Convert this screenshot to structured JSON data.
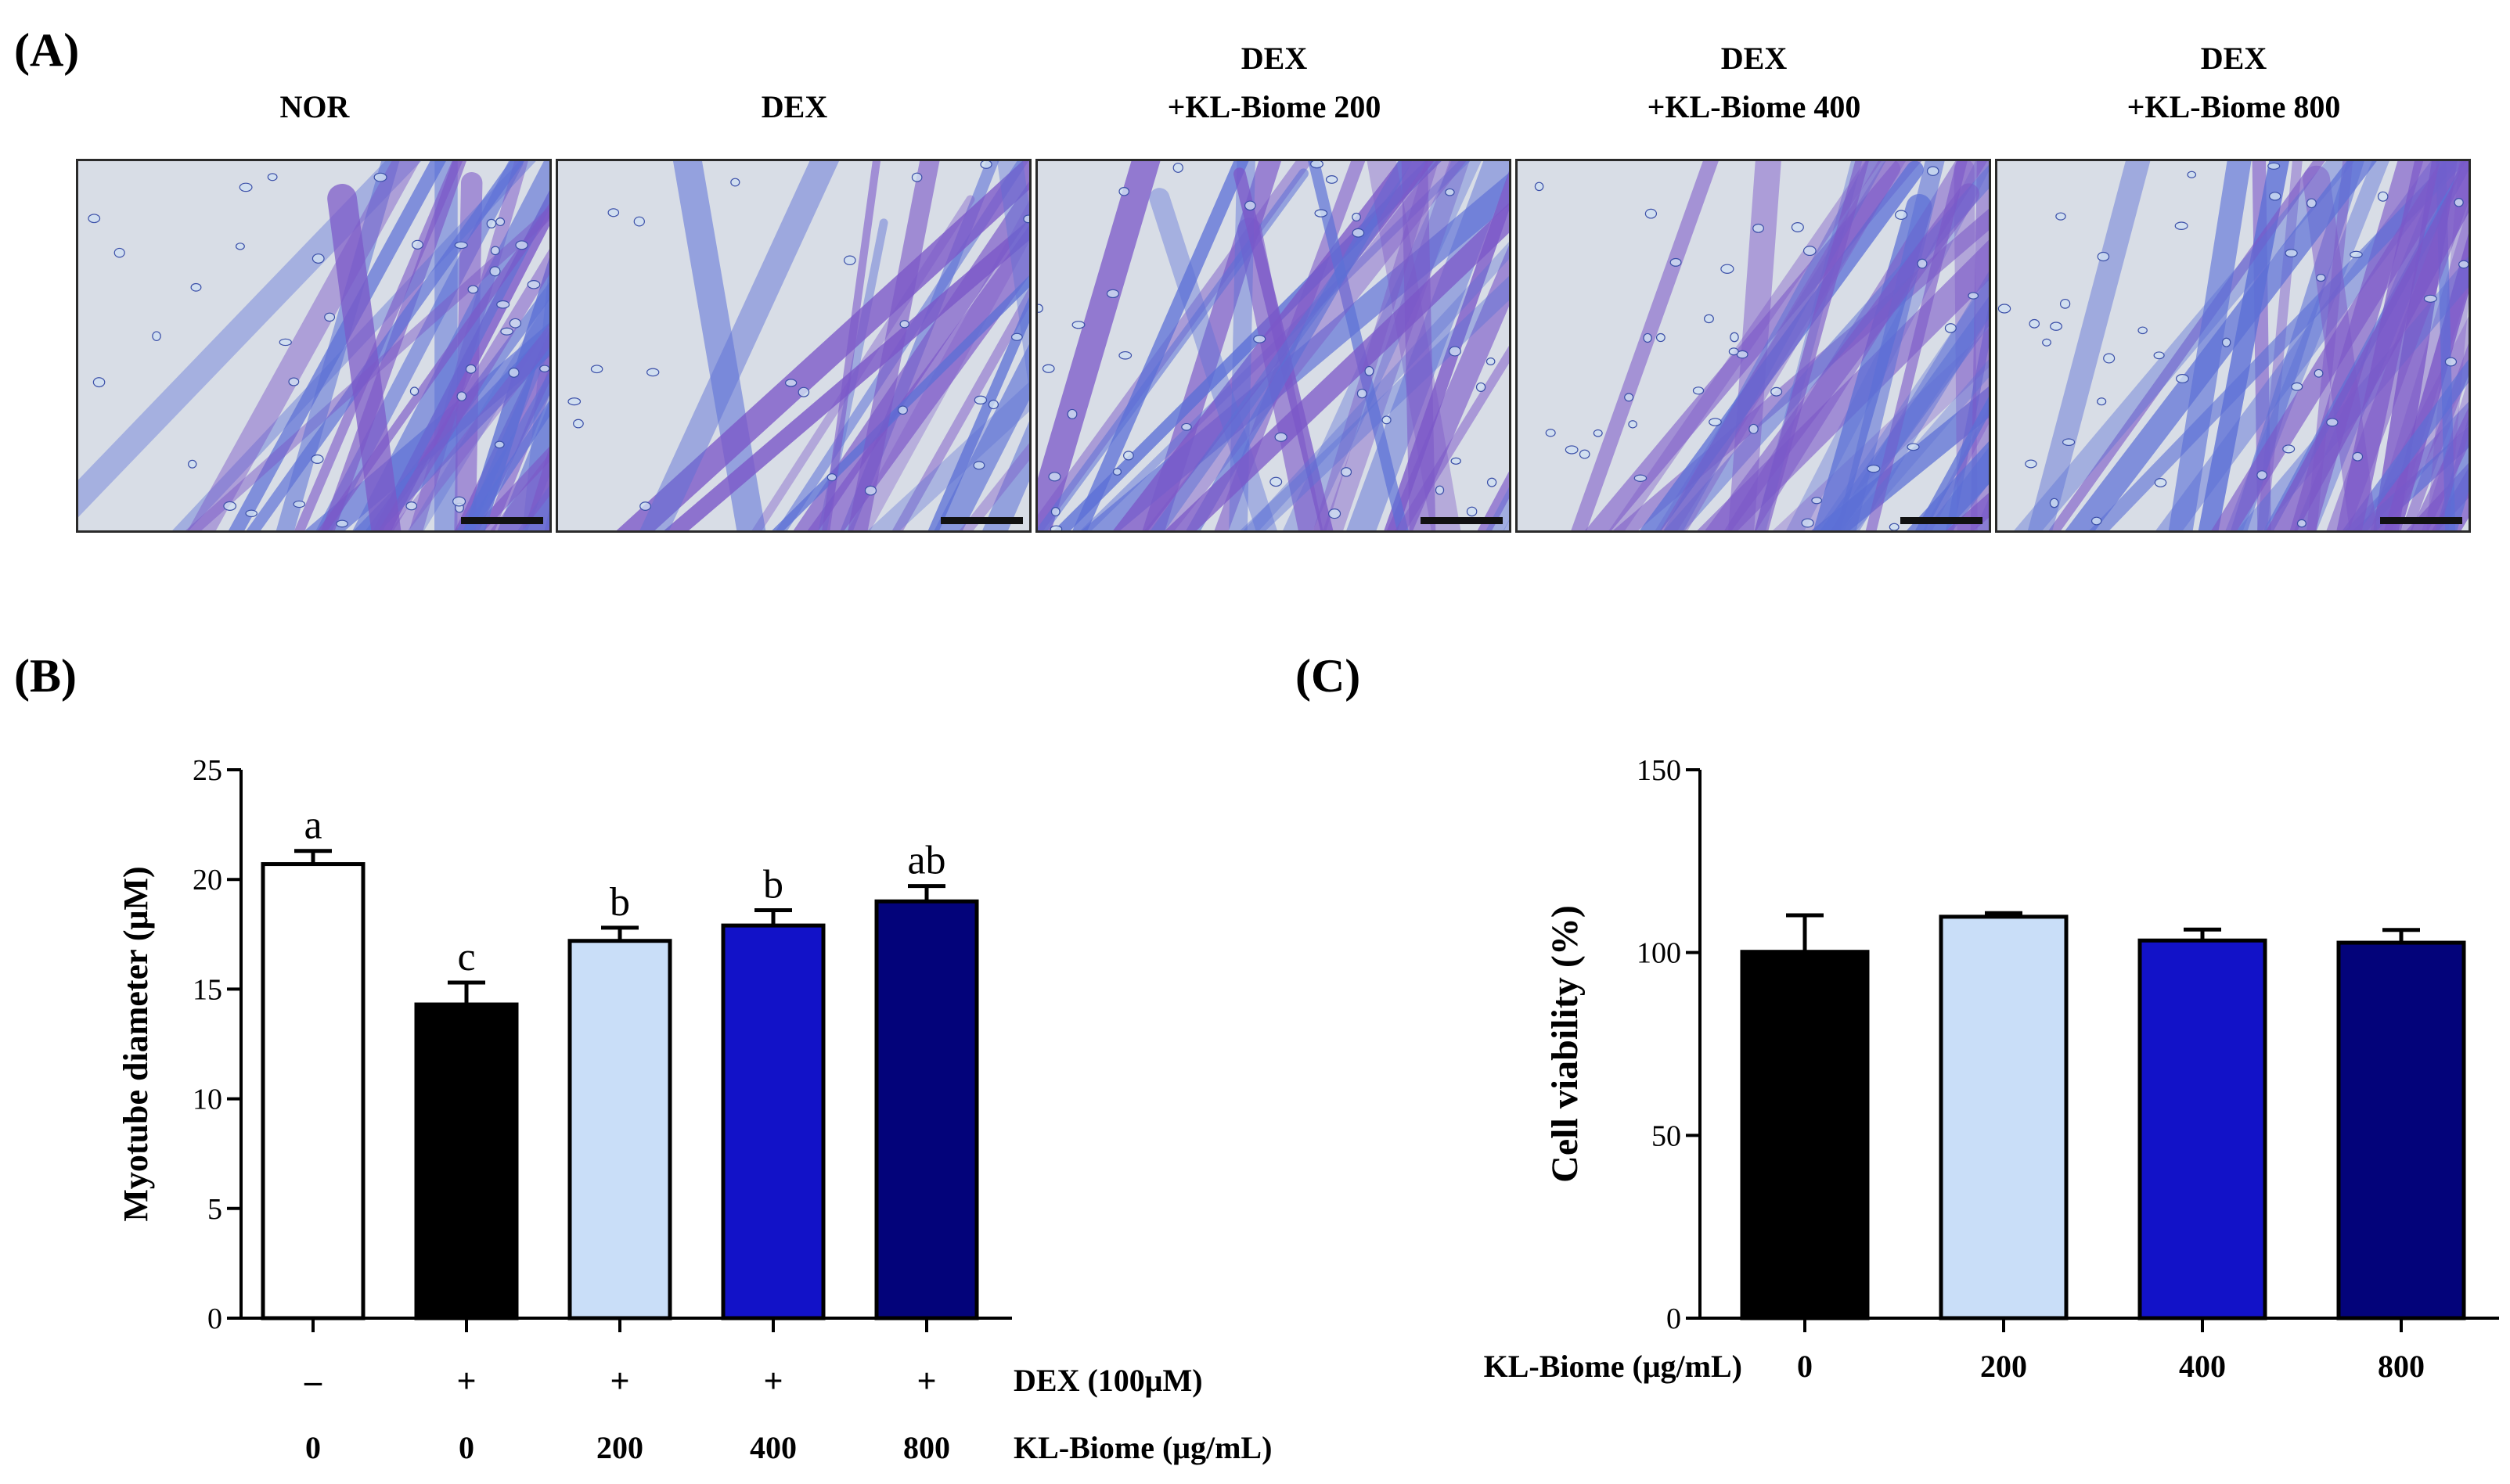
{
  "figure": {
    "panel_a_label": "(A)",
    "panel_b_label": "(B)",
    "panel_c_label": "(C)",
    "micrographs": [
      {
        "line1": "",
        "line2": "NOR"
      },
      {
        "line1": "",
        "line2": "DEX"
      },
      {
        "line1": "DEX",
        "line2": "+KL-Biome 200"
      },
      {
        "line1": "DEX",
        "line2": "+KL-Biome 400"
      },
      {
        "line1": "DEX",
        "line2": "+KL-Biome 800"
      }
    ]
  },
  "colors": {
    "white": "#ffffff",
    "black": "#000000",
    "light_blue": "#c9def8",
    "blue": "#1212c8",
    "navy": "#03037a",
    "stain_purple": "#7b57c8",
    "stain_blue": "#5b6fd6",
    "background_cell": "#d8dde6"
  },
  "chart_data": [
    {
      "type": "bar",
      "panel": "B",
      "ylabel": "Myotube diameter (μM)",
      "ylim": [
        0,
        25
      ],
      "yticks": [
        "0",
        "5",
        "10",
        "15",
        "20",
        "25"
      ],
      "ytick_values": [
        0,
        5,
        10,
        15,
        20,
        25
      ],
      "categories": [
        "NOR",
        "DEX",
        "DEX+KL-Biome 200",
        "DEX+KL-Biome 400",
        "DEX+KL-Biome 800"
      ],
      "values": [
        20.7,
        14.3,
        17.2,
        17.9,
        19.0
      ],
      "errors": [
        0.6,
        1.0,
        0.6,
        0.7,
        0.7
      ],
      "sig_letters": [
        "a",
        "c",
        "b",
        "b",
        "ab"
      ],
      "bar_colors": [
        "#ffffff",
        "#000000",
        "#c9def8",
        "#1212c8",
        "#03037a"
      ],
      "row1_label": "DEX (100μM)",
      "row1": [
        "–",
        "+",
        "+",
        "+",
        "+"
      ],
      "row2_label": "KL-Biome (μg/mL)",
      "row2": [
        "0",
        "0",
        "200",
        "400",
        "800"
      ]
    },
    {
      "type": "bar",
      "panel": "C",
      "ylabel": "Cell viability (%)",
      "ylim": [
        0,
        150
      ],
      "yticks": [
        "0",
        "50",
        "100",
        "150"
      ],
      "ytick_values": [
        0,
        50,
        100,
        150
      ],
      "categories": [
        "0",
        "200",
        "400",
        "800"
      ],
      "values": [
        100.2,
        109.8,
        103.3,
        102.7
      ],
      "errors": [
        10.0,
        1.0,
        3.0,
        3.5
      ],
      "bar_colors": [
        "#000000",
        "#c9def8",
        "#1212c8",
        "#03037a"
      ],
      "xlabel": "KL-Biome (μg/mL)"
    }
  ]
}
